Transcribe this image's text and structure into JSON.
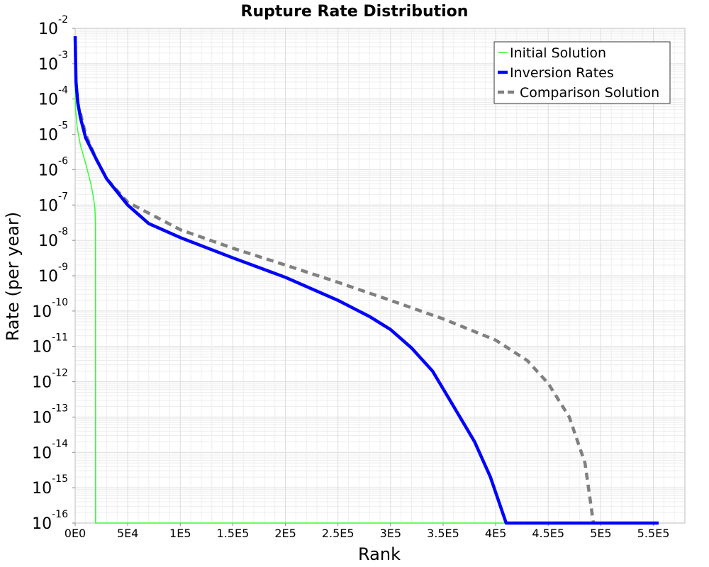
{
  "chart_data": {
    "type": "line",
    "title": "Rupture Rate Distribution",
    "xlabel": "Rank",
    "ylabel": "Rate (per year)",
    "xlim": [
      0,
      580000
    ],
    "ylim": [
      1e-16,
      0.01
    ],
    "yscale": "log",
    "grid": true,
    "legend_position": "top-right",
    "x_ticks": [
      {
        "value": 0,
        "label": "0E0"
      },
      {
        "value": 50000,
        "label": "5E4"
      },
      {
        "value": 100000,
        "label": "1E5"
      },
      {
        "value": 150000,
        "label": "1.5E5"
      },
      {
        "value": 200000,
        "label": "2E5"
      },
      {
        "value": 250000,
        "label": "2.5E5"
      },
      {
        "value": 300000,
        "label": "3E5"
      },
      {
        "value": 350000,
        "label": "3.5E5"
      },
      {
        "value": 400000,
        "label": "4E5"
      },
      {
        "value": 450000,
        "label": "4.5E5"
      },
      {
        "value": 500000,
        "label": "5E5"
      },
      {
        "value": 550000,
        "label": "5.5E5"
      }
    ],
    "y_ticks": [
      {
        "value": 0.01,
        "base": "10",
        "exp": "-2"
      },
      {
        "value": 0.001,
        "base": "10",
        "exp": "-3"
      },
      {
        "value": 0.0001,
        "base": "10",
        "exp": "-4"
      },
      {
        "value": 1e-05,
        "base": "10",
        "exp": "-5"
      },
      {
        "value": 1e-06,
        "base": "10",
        "exp": "-6"
      },
      {
        "value": 1e-07,
        "base": "10",
        "exp": "-7"
      },
      {
        "value": 1e-08,
        "base": "10",
        "exp": "-8"
      },
      {
        "value": 1e-09,
        "base": "10",
        "exp": "-9"
      },
      {
        "value": 1e-10,
        "base": "10",
        "exp": "-10"
      },
      {
        "value": 1e-11,
        "base": "10",
        "exp": "-11"
      },
      {
        "value": 1e-12,
        "base": "10",
        "exp": "-12"
      },
      {
        "value": 1e-13,
        "base": "10",
        "exp": "-13"
      },
      {
        "value": 1e-14,
        "base": "10",
        "exp": "-14"
      },
      {
        "value": 1e-15,
        "base": "10",
        "exp": "-15"
      },
      {
        "value": 1e-16,
        "base": "10",
        "exp": "-16"
      }
    ],
    "series": [
      {
        "name": "Initial Solution",
        "color": "#33ff33",
        "style": "solid",
        "points": [
          [
            0,
            0.0003
          ],
          [
            500,
            5e-05
          ],
          [
            2000,
            1.5e-05
          ],
          [
            5000,
            5e-06
          ],
          [
            10000,
            1.5e-06
          ],
          [
            15000,
            4e-07
          ],
          [
            17500,
            1.6e-07
          ],
          [
            18800,
            8e-08
          ],
          [
            19300,
            3e-08
          ],
          [
            19400,
            1e-16
          ],
          [
            555000,
            1e-16
          ]
        ]
      },
      {
        "name": "Inversion Rates",
        "color": "#0000ff",
        "style": "solid",
        "points": [
          [
            0,
            0.006
          ],
          [
            800,
            0.0003
          ],
          [
            2500,
            8e-05
          ],
          [
            5000,
            3e-05
          ],
          [
            10000,
            8e-06
          ],
          [
            20000,
            2e-06
          ],
          [
            30000,
            5.5e-07
          ],
          [
            50000,
            1e-07
          ],
          [
            70000,
            3e-08
          ],
          [
            100000,
            1.2e-08
          ],
          [
            150000,
            3.2e-09
          ],
          [
            200000,
            9e-10
          ],
          [
            250000,
            2e-10
          ],
          [
            280000,
            7e-11
          ],
          [
            300000,
            3e-11
          ],
          [
            320000,
            9e-12
          ],
          [
            340000,
            2e-12
          ],
          [
            360000,
            2e-13
          ],
          [
            380000,
            2e-14
          ],
          [
            395000,
            2e-15
          ],
          [
            410000,
            1e-16
          ],
          [
            425000,
            1e-16
          ],
          [
            555000,
            1e-16
          ]
        ]
      },
      {
        "name": "Comparison Solution",
        "color": "#808080",
        "style": "dashed",
        "points": [
          [
            5000,
            4e-05
          ],
          [
            10000,
            1e-05
          ],
          [
            20000,
            2e-06
          ],
          [
            30000,
            5.5e-07
          ],
          [
            50000,
            1.2e-07
          ],
          [
            100000,
            2e-08
          ],
          [
            150000,
            6e-09
          ],
          [
            200000,
            2e-09
          ],
          [
            250000,
            6.5e-10
          ],
          [
            300000,
            2e-10
          ],
          [
            350000,
            6e-11
          ],
          [
            400000,
            1.5e-11
          ],
          [
            430000,
            4e-12
          ],
          [
            450000,
            9e-13
          ],
          [
            470000,
            1e-13
          ],
          [
            485000,
            5e-15
          ],
          [
            493000,
            1e-16
          ]
        ]
      }
    ]
  }
}
